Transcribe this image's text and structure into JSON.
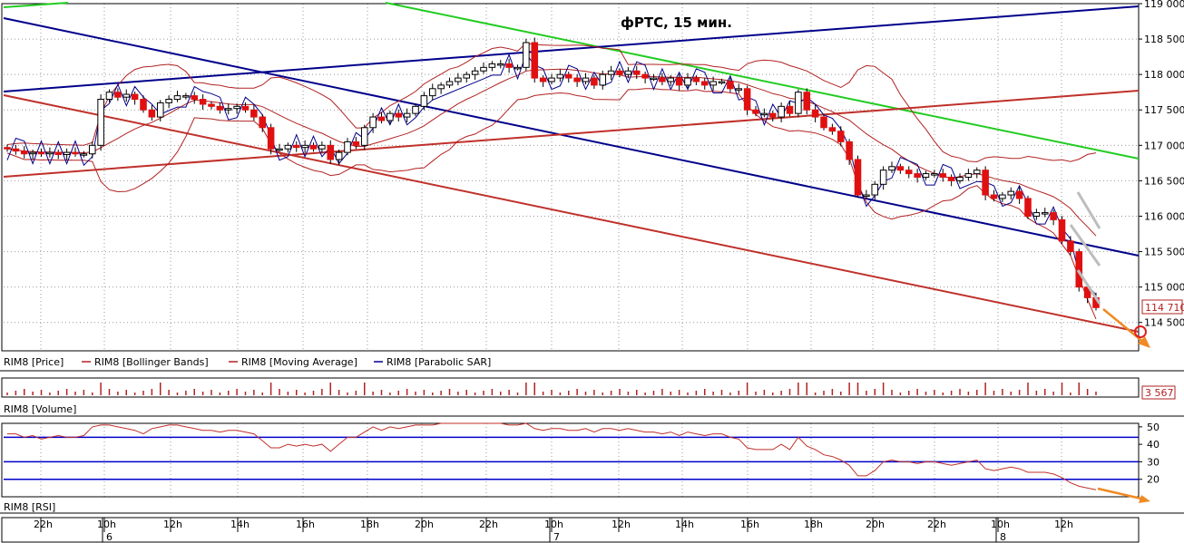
{
  "chart_data": {
    "type": "candlestick",
    "title": "фРТС, 15 мин.",
    "price_axis": {
      "ylim": [
        114100,
        119000
      ],
      "ticks": [
        "119 000",
        "118 500",
        "118 000",
        "117 500",
        "117 000",
        "116 500",
        "116 000",
        "115 500",
        "115 000",
        "114 500"
      ],
      "tick_values": [
        119000,
        118500,
        118000,
        117500,
        117000,
        116500,
        116000,
        115500,
        115000,
        114500
      ],
      "last_price_label": "114 710",
      "last_price": 114710
    },
    "legend": [
      {
        "name": "RIM8 [Price]",
        "color": "#000000",
        "marker": false
      },
      {
        "name": "RIM8 [Bollinger Bands]",
        "color": "#b22222",
        "marker": true
      },
      {
        "name": "RIM8 [Moving Average]",
        "color": "#b22222",
        "marker": true
      },
      {
        "name": "RIM8 [Parabolic SAR]",
        "color": "#00008b",
        "marker": true
      }
    ],
    "volume_panel": {
      "label": "RIM8 [Volume]",
      "last_value_label": "3 567"
    },
    "rsi_panel": {
      "label": "RIM8 [RSI]",
      "ticks": [
        "50",
        "40",
        "30",
        "20"
      ],
      "tick_values": [
        50,
        40,
        30,
        20
      ],
      "ylim": [
        10,
        52
      ],
      "levels": [
        44,
        30,
        20
      ]
    },
    "time_axis": {
      "hour_labels": [
        "22h",
        "10h",
        "12h",
        "14h",
        "16h",
        "18h",
        "20h",
        "22h",
        "10h",
        "12h",
        "14h",
        "16h",
        "18h",
        "20h",
        "22h",
        "10h",
        "12h"
      ],
      "day_labels": [
        {
          "label": "6",
          "at_hour_index": 1
        },
        {
          "label": "7",
          "at_hour_index": 8
        },
        {
          "label": "8",
          "at_hour_index": 15
        }
      ]
    },
    "series": {
      "close": [
        116950,
        116920,
        116880,
        116900,
        116880,
        116900,
        116870,
        116900,
        116880,
        116880,
        117000,
        117650,
        117750,
        117680,
        117720,
        117650,
        117500,
        117400,
        117600,
        117650,
        117700,
        117700,
        117650,
        117580,
        117550,
        117500,
        117520,
        117550,
        117500,
        117400,
        117250,
        116950,
        116950,
        117000,
        116970,
        117000,
        116950,
        117000,
        116800,
        116900,
        117050,
        117000,
        117250,
        117400,
        117350,
        117450,
        117400,
        117450,
        117550,
        117700,
        117800,
        117850,
        117900,
        117950,
        118000,
        118050,
        118100,
        118150,
        118150,
        118100,
        118100,
        118450,
        117950,
        117900,
        117950,
        118000,
        117950,
        117900,
        117950,
        117850,
        118000,
        118050,
        118000,
        118050,
        118000,
        117950,
        117950,
        117900,
        117950,
        117850,
        117950,
        117900,
        117850,
        117900,
        117900,
        117800,
        117800,
        117500,
        117450,
        117450,
        117400,
        117550,
        117450,
        117750,
        117500,
        117400,
        117250,
        117200,
        117050,
        116800,
        116300,
        116300,
        116450,
        116650,
        116700,
        116650,
        116600,
        116550,
        116600,
        116600,
        116550,
        116500,
        116550,
        116600,
        116650,
        116300,
        116250,
        116300,
        116350,
        116250,
        116000,
        116050,
        116050,
        115950,
        115650,
        115500,
        115000,
        114850,
        114710
      ],
      "rsi": [
        46,
        46,
        44,
        45,
        43,
        44,
        45,
        44,
        44,
        45,
        50,
        51,
        51,
        50,
        49,
        48,
        46,
        49,
        50,
        51,
        51,
        50,
        49,
        48,
        48,
        47,
        48,
        48,
        47,
        46,
        42,
        38,
        38,
        40,
        39,
        40,
        39,
        40,
        36,
        40,
        44,
        44,
        47,
        50,
        48,
        50,
        49,
        50,
        51,
        51,
        51,
        52,
        52,
        52,
        52,
        52,
        52,
        52,
        52,
        51,
        51,
        52,
        49,
        48,
        49,
        49,
        48,
        48,
        49,
        47,
        49,
        49,
        48,
        49,
        48,
        47,
        47,
        46,
        47,
        45,
        47,
        46,
        45,
        46,
        46,
        44,
        43,
        38,
        37,
        37,
        37,
        40,
        37,
        44,
        39,
        37,
        34,
        33,
        31,
        28,
        22,
        22,
        25,
        30,
        31,
        30,
        30,
        29,
        30,
        30,
        29,
        28,
        29,
        30,
        31,
        26,
        25,
        26,
        27,
        26,
        24,
        24,
        24,
        23,
        21,
        18,
        16,
        15,
        14
      ]
    }
  }
}
